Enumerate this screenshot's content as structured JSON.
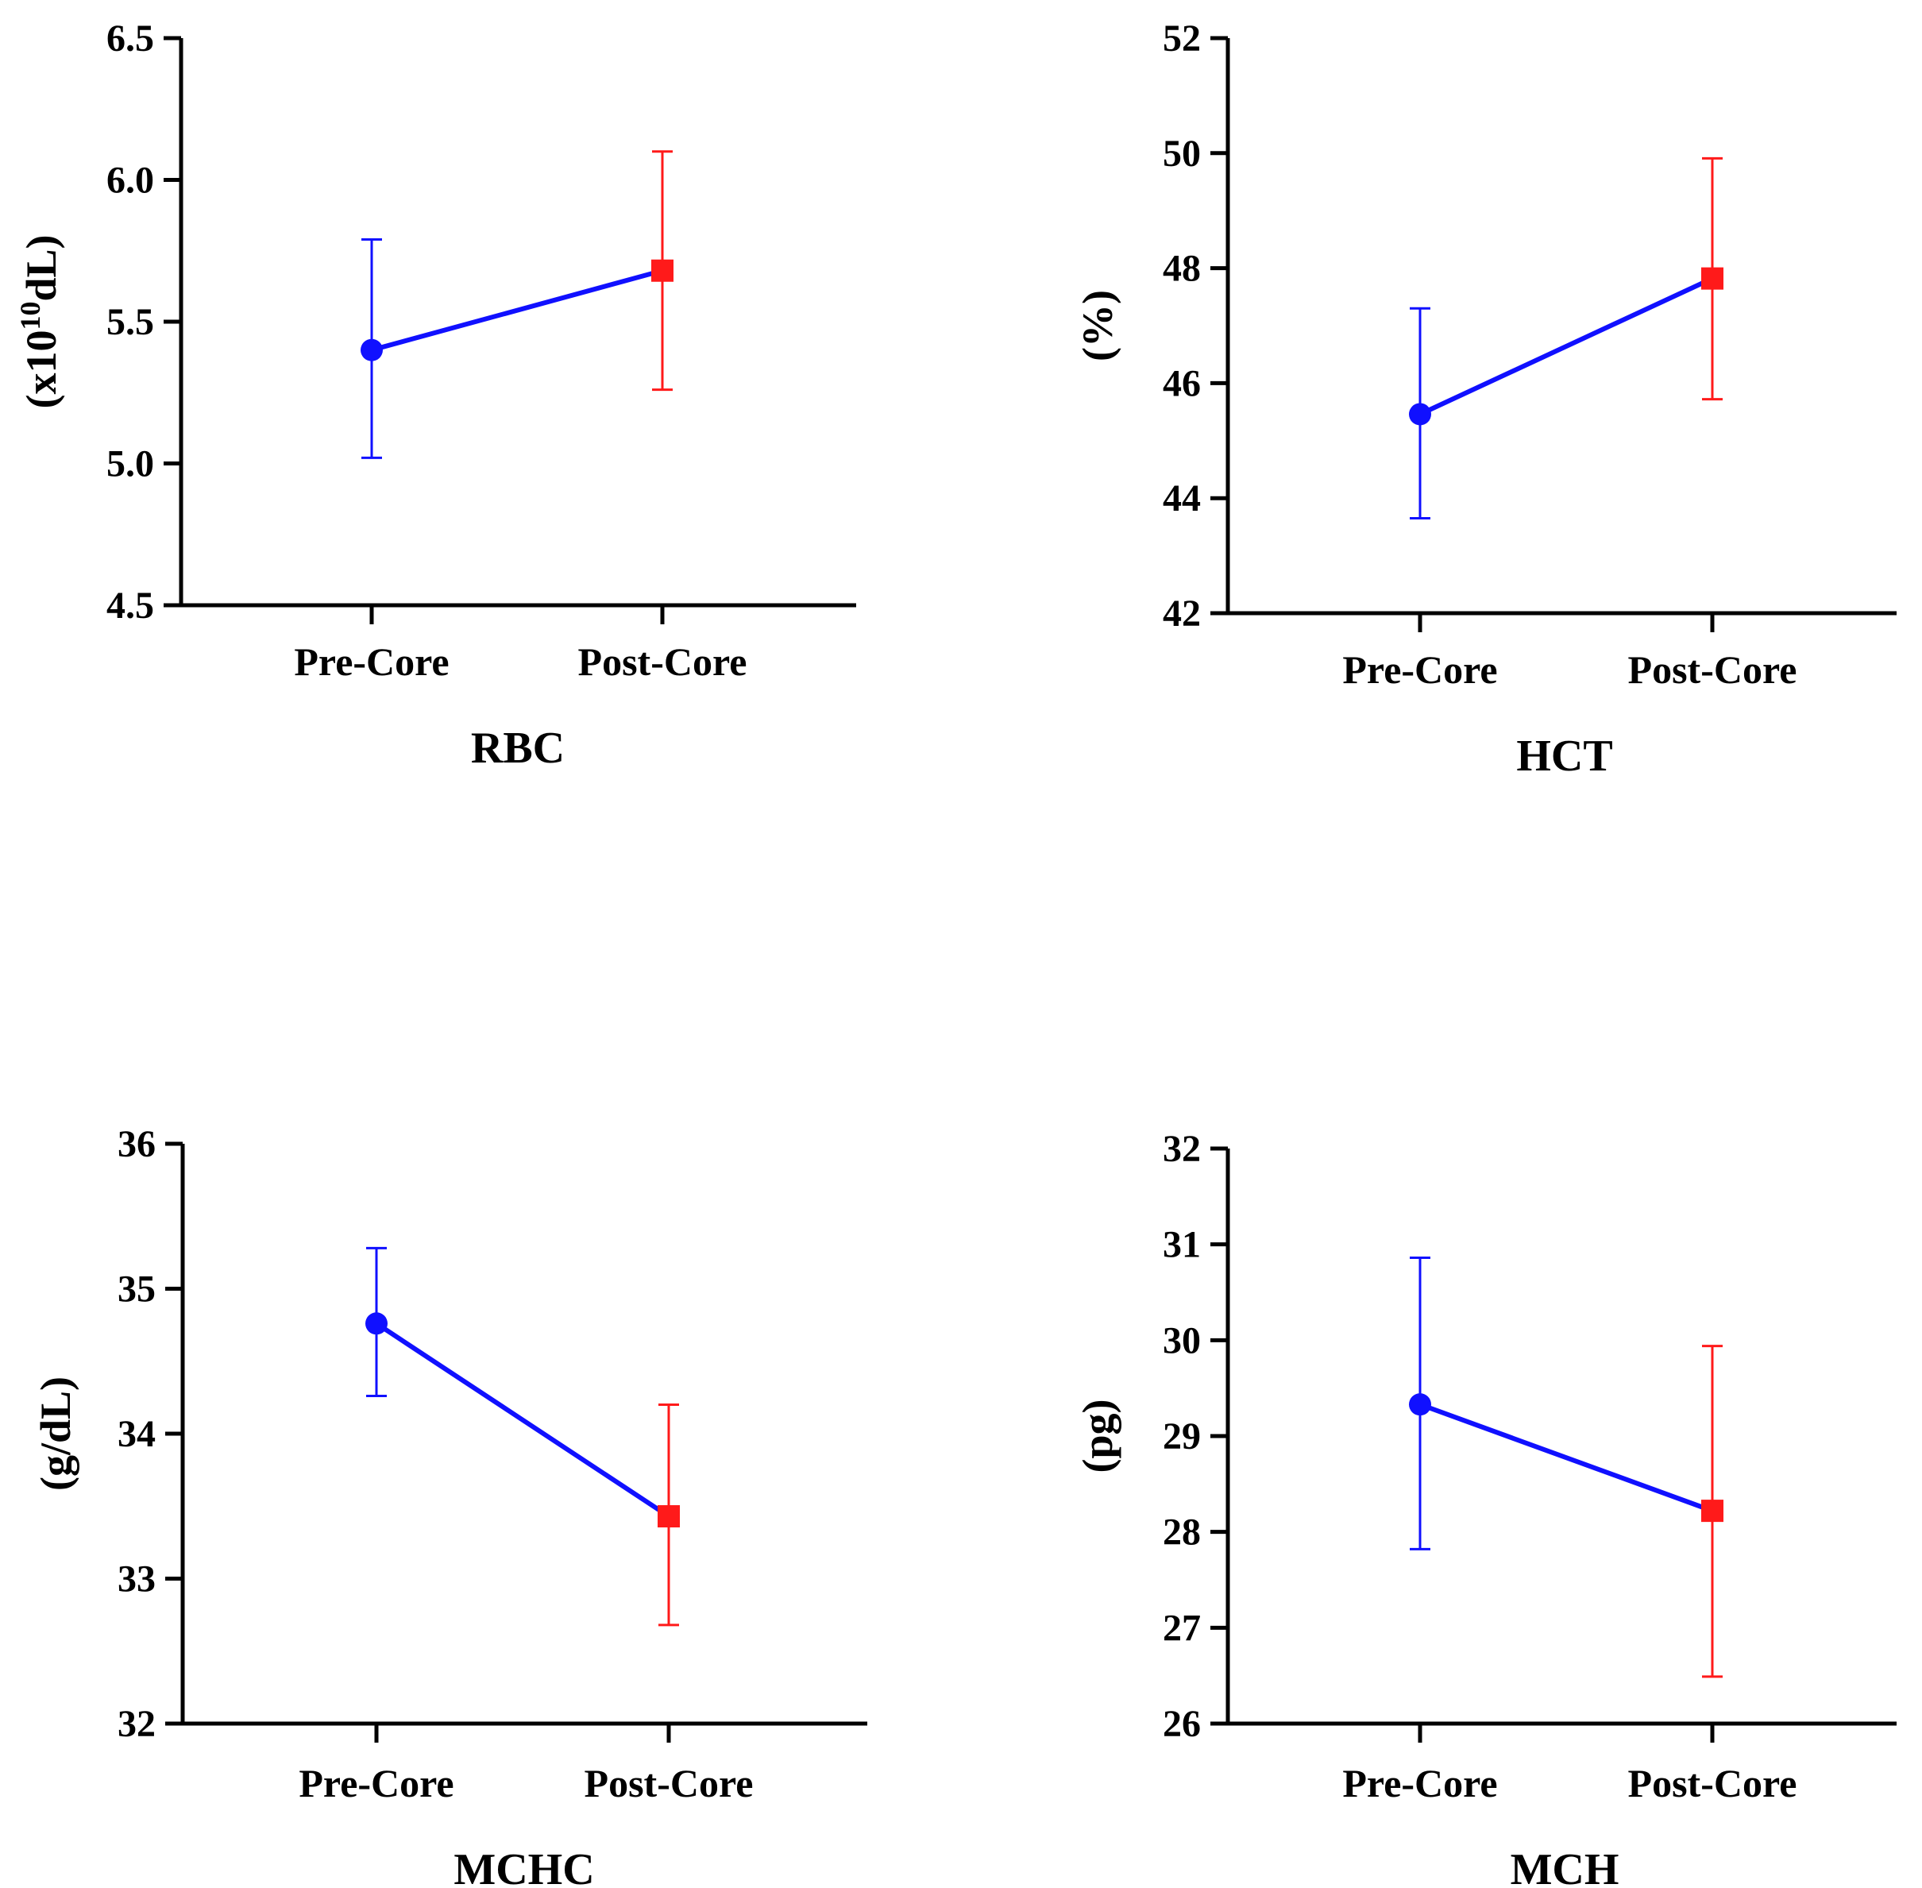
{
  "chart_data": [
    {
      "type": "line",
      "title": "RBC",
      "xlabel": "RBC",
      "ylabel_parts": {
        "pre": "(x10",
        "sup": "10",
        "post": "dL)"
      },
      "ylim": [
        4.5,
        6.5
      ],
      "yticks": [
        "4.5",
        "5.0",
        "5.5",
        "6.0",
        "6.5"
      ],
      "categories": [
        "Pre-Core",
        "Post-Core"
      ],
      "means": [
        5.4,
        5.68
      ],
      "err_low": [
        5.02,
        5.26
      ],
      "err_high": [
        5.79,
        6.1
      ],
      "colors": [
        "#1010ff",
        "#ff1a1a"
      ],
      "markers": [
        "circle",
        "square"
      ],
      "line_color": "#1010ff"
    },
    {
      "type": "line",
      "title": "HCT",
      "xlabel": "HCT",
      "ylabel": "(%)",
      "ylim": [
        42,
        52
      ],
      "yticks": [
        "42",
        "44",
        "46",
        "48",
        "50",
        "52"
      ],
      "categories": [
        "Pre-Core",
        "Post-Core"
      ],
      "means": [
        45.46,
        47.82
      ],
      "err_low": [
        43.65,
        45.72
      ],
      "err_high": [
        47.3,
        49.91
      ],
      "colors": [
        "#1010ff",
        "#ff1a1a"
      ],
      "markers": [
        "circle",
        "square"
      ],
      "line_color": "#1010ff"
    },
    {
      "type": "line",
      "title": "MCHC",
      "xlabel": "MCHC",
      "ylabel": "(g/dL)",
      "ylim": [
        32,
        36
      ],
      "yticks": [
        "32",
        "33",
        "34",
        "35",
        "36"
      ],
      "categories": [
        "Pre-Core",
        "Post-Core"
      ],
      "means": [
        34.76,
        33.43
      ],
      "err_low": [
        34.26,
        32.68
      ],
      "err_high": [
        35.28,
        34.2
      ],
      "colors": [
        "#1010ff",
        "#ff1a1a"
      ],
      "markers": [
        "circle",
        "square"
      ],
      "line_color": "#1010ff"
    },
    {
      "type": "line",
      "title": "MCH",
      "xlabel": "MCH",
      "ylabel": "(pg)",
      "ylim": [
        26,
        32
      ],
      "yticks": [
        "26",
        "27",
        "28",
        "29",
        "30",
        "31",
        "32"
      ],
      "categories": [
        "Pre-Core",
        "Post-Core"
      ],
      "means": [
        29.33,
        28.22
      ],
      "err_low": [
        27.82,
        26.49
      ],
      "err_high": [
        30.86,
        29.94
      ],
      "colors": [
        "#1010ff",
        "#ff1a1a"
      ],
      "markers": [
        "circle",
        "square"
      ],
      "line_color": "#1010ff"
    }
  ]
}
